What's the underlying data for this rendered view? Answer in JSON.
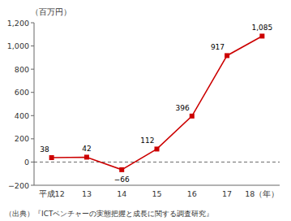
{
  "chart_data": {
    "type": "line",
    "y_label": "（百万円）",
    "caption": "（出典）『ICTベンチャーの実態把握と成長に関する調査研究』",
    "categories": [
      "平成12",
      "13",
      "14",
      "15",
      "16",
      "17",
      "18（年）"
    ],
    "values": [
      38,
      42,
      -66,
      112,
      396,
      917,
      1085
    ],
    "value_labels": [
      "38",
      "42",
      "−66",
      "112",
      "396",
      "917",
      "1,085"
    ],
    "data_labels": true,
    "color": "#cc0000",
    "marker": "square",
    "ylim": [
      -200,
      1200
    ],
    "yticks": [
      {
        "value": -200,
        "label": "−200"
      },
      0,
      200,
      400,
      600,
      800,
      {
        "value": 1000,
        "label": "1,000"
      },
      {
        "value": 1200,
        "label": "1,200"
      }
    ],
    "grid": false
  }
}
